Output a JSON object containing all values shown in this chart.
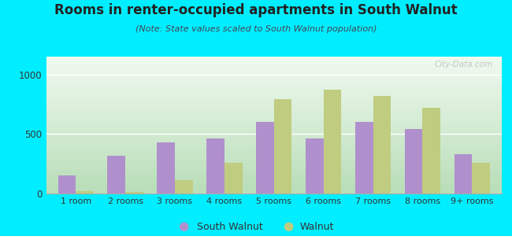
{
  "title": "Rooms in renter-occupied apartments in South Walnut",
  "subtitle": "(Note: State values scaled to South Walnut population)",
  "categories": [
    "1 room",
    "2 rooms",
    "3 rooms",
    "4 rooms",
    "5 rooms",
    "6 rooms",
    "7 rooms",
    "8 rooms",
    "9+ rooms"
  ],
  "south_walnut": [
    150,
    320,
    430,
    465,
    600,
    465,
    600,
    540,
    330
  ],
  "walnut": [
    18,
    15,
    110,
    255,
    790,
    870,
    820,
    720,
    255
  ],
  "color_sw": "#b090cc",
  "color_walnut": "#c0cc80",
  "ylim": [
    0,
    1150
  ],
  "yticks": [
    0,
    500,
    1000
  ],
  "background_outer": "#00eeff",
  "bar_width": 0.36,
  "legend_sw": "South Walnut",
  "legend_walnut": "Walnut",
  "title_color": "#222222",
  "subtitle_color": "#444455",
  "gradient_bottom": "#b8ddb8",
  "gradient_top": "#f0faf0"
}
